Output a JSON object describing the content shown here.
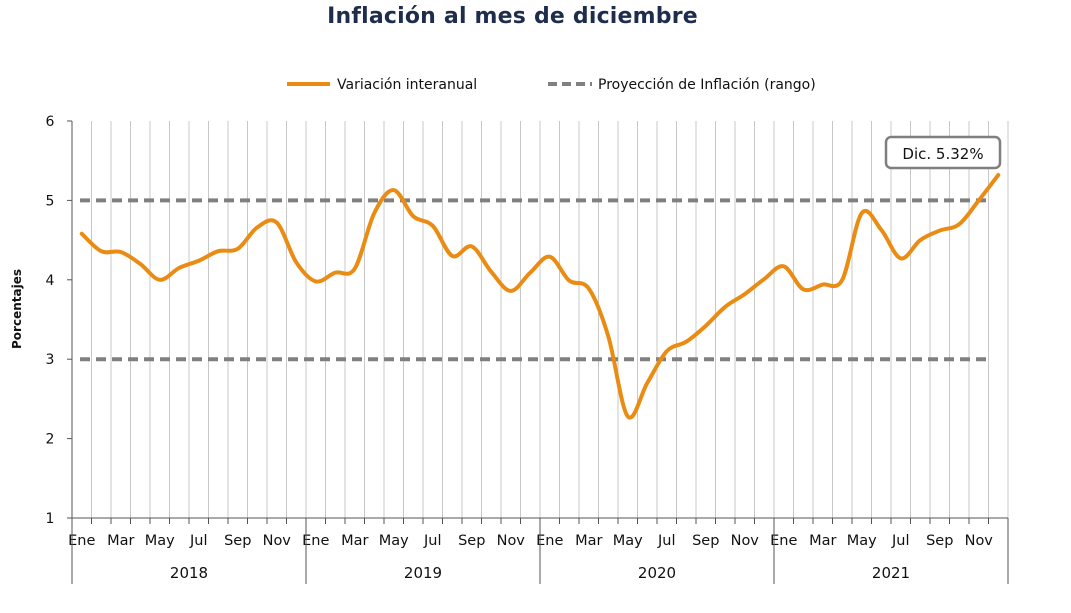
{
  "chart_data": {
    "type": "line",
    "title": "Inflación al mes de diciembre",
    "ylabel": "Porcentajes",
    "ylim": [
      1,
      6
    ],
    "yticks": [
      1,
      2,
      3,
      4,
      5,
      6
    ],
    "grid": true,
    "legend_position": "top",
    "month_labels": [
      "Ene",
      "",
      "Mar",
      "",
      "May",
      "",
      "Jul",
      "",
      "Sep",
      "",
      "Nov",
      ""
    ],
    "years": [
      "2018",
      "2019",
      "2020",
      "2021"
    ],
    "series": [
      {
        "name": "Variación interanual",
        "color": "#ea8c13",
        "style": "solid",
        "values": [
          4.58,
          4.36,
          4.35,
          4.2,
          4.0,
          4.15,
          4.24,
          4.36,
          4.39,
          4.66,
          4.72,
          4.22,
          3.98,
          4.09,
          4.14,
          4.84,
          5.13,
          4.8,
          4.68,
          4.3,
          4.42,
          4.1,
          3.86,
          4.09,
          4.29,
          3.99,
          3.89,
          3.29,
          2.28,
          2.7,
          3.1,
          3.22,
          3.42,
          3.66,
          3.82,
          4.01,
          4.17,
          3.88,
          3.94,
          4.0,
          4.84,
          4.63,
          4.27,
          4.5,
          4.62,
          4.7,
          5.0,
          5.32
        ]
      },
      {
        "name": "Proyección de Inflación (rango)",
        "color": "#808080",
        "style": "dashed",
        "bounds": [
          3,
          5
        ]
      }
    ],
    "annotation": "Dic. 5.32%"
  }
}
